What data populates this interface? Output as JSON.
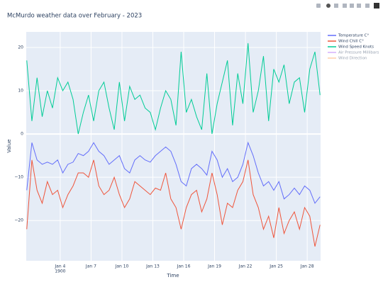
{
  "chart_data": {
    "type": "line",
    "title": "McMurdo weather data over February - 2023",
    "x_label": "Time",
    "y_label": "Value",
    "x": [
      0.75,
      1.25,
      1.75,
      2.25,
      2.75,
      3.25,
      3.75,
      4.25,
      4.75,
      5.25,
      5.75,
      6.25,
      6.75,
      7.25,
      7.75,
      8.25,
      8.75,
      9.25,
      9.75,
      10.25,
      10.75,
      11.25,
      11.75,
      12.25,
      12.75,
      13.25,
      13.75,
      14.25,
      14.75,
      15.25,
      15.75,
      16.25,
      16.75,
      17.25,
      17.75,
      18.25,
      18.75,
      19.25,
      19.75,
      20.25,
      20.75,
      21.25,
      21.75,
      22.25,
      22.75,
      23.25,
      23.75,
      24.25,
      24.75,
      25.25,
      25.75,
      26.25,
      26.75,
      27.25,
      27.75,
      28.25,
      28.75,
      29.25
    ],
    "series": [
      {
        "name": "Temperature C°",
        "color": "#636efa",
        "values": [
          -13,
          -2,
          -6,
          -7,
          -6.5,
          -7,
          -6,
          -9,
          -7,
          -6.5,
          -4.5,
          -5,
          -4,
          -2,
          -4,
          -5,
          -7,
          -6,
          -5,
          -8,
          -9,
          -6,
          -5,
          -6,
          -6.5,
          -5,
          -4,
          -3,
          -4,
          -7,
          -11,
          -12,
          -8,
          -7,
          -8,
          -9.5,
          -4,
          -6,
          -10,
          -8,
          -11,
          -10,
          -7,
          -2,
          -5,
          -9,
          -12,
          -11,
          -13,
          -11,
          -15,
          -14,
          -12.5,
          -14,
          -12,
          -13,
          -16,
          -14.5
        ]
      },
      {
        "name": "Wind Chill C°",
        "color": "#EF553B",
        "values": [
          -22,
          -6,
          -13,
          -16,
          -11,
          -14,
          -13,
          -17,
          -14,
          -12,
          -9,
          -9,
          -10,
          -6,
          -12,
          -14,
          -13,
          -10,
          -14,
          -17,
          -15,
          -11,
          -12,
          -13,
          -14,
          -12.5,
          -13,
          -9,
          -15,
          -17,
          -22,
          -17,
          -14,
          -13,
          -18,
          -15,
          -9,
          -14,
          -21,
          -16,
          -17,
          -13,
          -11,
          -6,
          -14,
          -17,
          -22,
          -19,
          -24,
          -17,
          -23,
          -20,
          -18,
          -22,
          -17,
          -19,
          -26,
          -21
        ]
      },
      {
        "name": "Wind Speed Knots",
        "color": "#00cc96",
        "values": [
          17,
          3,
          13,
          4,
          10,
          6,
          13,
          10,
          12,
          8,
          0,
          5,
          9,
          3,
          10,
          12,
          6,
          1,
          12,
          3,
          11,
          8,
          9,
          6,
          5,
          1,
          6,
          10,
          8,
          2,
          19,
          5,
          8,
          4,
          1,
          14,
          0,
          7,
          12,
          17,
          2,
          14,
          7,
          21,
          5,
          10,
          18,
          3,
          15,
          12,
          16,
          7,
          12,
          13,
          5,
          15,
          19,
          9
        ]
      },
      {
        "name": "Air Pressure Millibars",
        "color": "#ab63fa",
        "visible": "legendonly"
      },
      {
        "name": "Wind Direction",
        "color": "#FFA15A",
        "visible": "legendonly"
      }
    ],
    "xlim": [
      0.7,
      29.3
    ],
    "xticks": [
      {
        "value": 4,
        "label": "Jan 4"
      },
      {
        "value": 7,
        "label": "Jan 7"
      },
      {
        "value": 10,
        "label": "Jan 10"
      },
      {
        "value": 13,
        "label": "Jan 13"
      },
      {
        "value": 16,
        "label": "Jan 16"
      },
      {
        "value": 19,
        "label": "Jan 19"
      },
      {
        "value": 22,
        "label": "Jan 22"
      },
      {
        "value": 25,
        "label": "Jan 25"
      },
      {
        "value": 28,
        "label": "Jan 28"
      }
    ],
    "x_year_label": "1900",
    "ylim": [
      -29.3,
      23.6
    ],
    "yticks": [
      {
        "value": -20,
        "label": "−20"
      },
      {
        "value": -10,
        "label": "−10"
      },
      0,
      10,
      20
    ],
    "grid": true,
    "background": "#e5ecf6",
    "legend": "right"
  }
}
